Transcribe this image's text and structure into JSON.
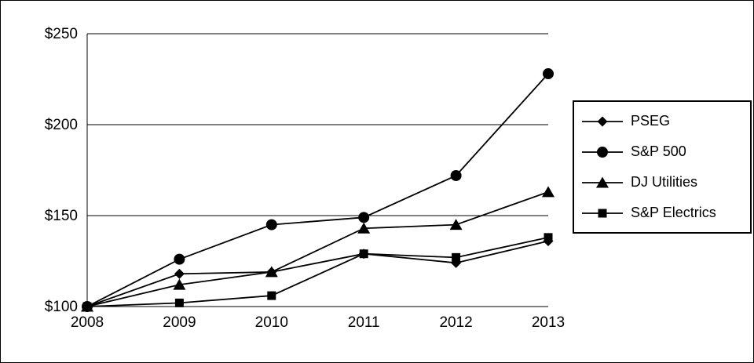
{
  "chart_data": {
    "type": "line",
    "title": "",
    "xlabel": "",
    "ylabel": "",
    "x_labels": [
      "2008",
      "2009",
      "2010",
      "2011",
      "2012",
      "2013"
    ],
    "y_ticks": [
      100,
      150,
      200,
      250
    ],
    "y_tick_labels": [
      "$100",
      "$150",
      "$200",
      "$250"
    ],
    "ylim": [
      100,
      250
    ],
    "grid": "horizontal",
    "legend_position": "right",
    "line_color": "#000000",
    "background_color": "#ffffff",
    "series": [
      {
        "name": "PSEG",
        "marker": "diamond",
        "values": [
          100,
          118,
          119,
          129,
          124,
          136
        ]
      },
      {
        "name": "S&P 500",
        "marker": "circle",
        "values": [
          100,
          126,
          145,
          149,
          172,
          228
        ]
      },
      {
        "name": "DJ Utilities",
        "marker": "triangle",
        "values": [
          100,
          112,
          119,
          143,
          145,
          163
        ]
      },
      {
        "name": "S&P Electrics",
        "marker": "square",
        "values": [
          100,
          102,
          106,
          129,
          127,
          138
        ]
      }
    ]
  }
}
